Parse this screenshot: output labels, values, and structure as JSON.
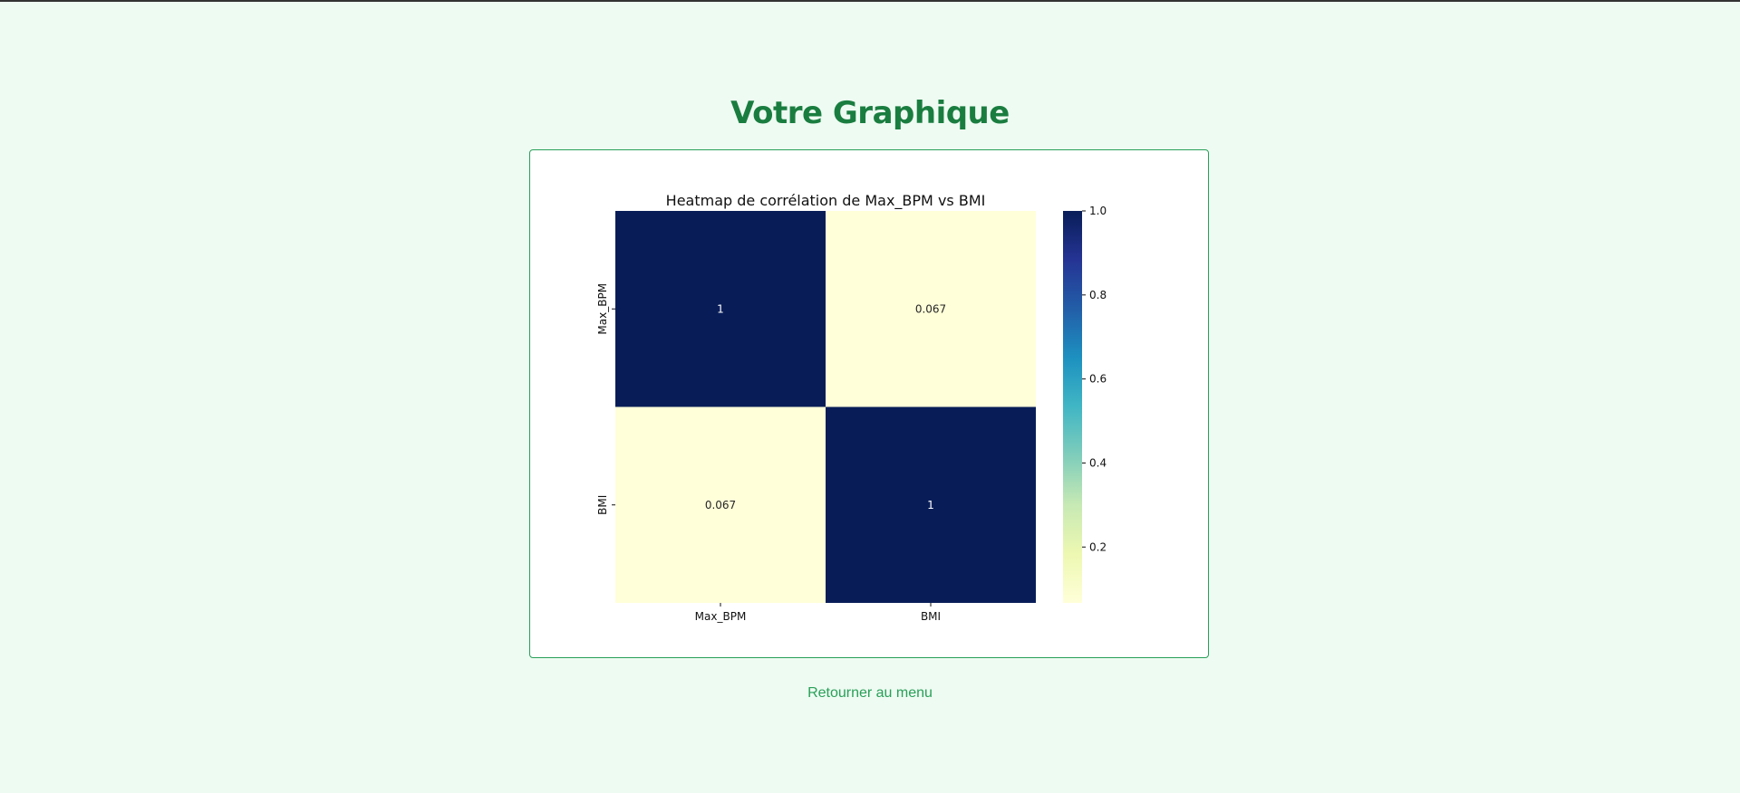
{
  "page": {
    "title": "Votre Graphique",
    "back_link_label": "Retourner au menu",
    "colors": {
      "background": "#eefbf2",
      "title": "#1a7d40",
      "card_border": "#28a058",
      "link": "#28a058"
    }
  },
  "chart_data": {
    "type": "heatmap",
    "title": "Heatmap de corrélation de Max_BPM vs BMI",
    "x_labels": [
      "Max_BPM",
      "BMI"
    ],
    "y_labels": [
      "Max_BPM",
      "BMI"
    ],
    "values": [
      [
        1,
        0.067
      ],
      [
        0.067,
        1
      ]
    ],
    "annotations": [
      [
        "1",
        "0.067"
      ],
      [
        "0.067",
        "1"
      ]
    ],
    "colormap": "YlGnBu",
    "colorbar": {
      "range": [
        0.067,
        1.0
      ],
      "ticks": [
        0.2,
        0.4,
        0.6,
        0.8,
        1.0
      ],
      "tick_labels": [
        "0.2",
        "0.4",
        "0.6",
        "0.8",
        "1.0"
      ]
    },
    "grid": false
  }
}
